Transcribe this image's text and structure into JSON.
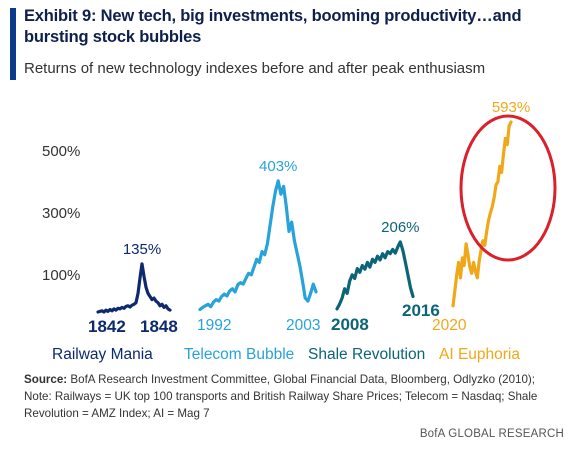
{
  "header": {
    "title": "Exhibit 9: New tech, big investments, booming productivity…and bursting stock bubbles",
    "subtitle": "Returns of new technology indexes before and after peak enthusiasm"
  },
  "chart_data": {
    "type": "line",
    "title": "Exhibit 9: New tech, big investments, booming productivity…and bursting stock bubbles",
    "subtitle": "Returns of new technology indexes before and after peak enthusiasm",
    "ylim": [
      0,
      600
    ],
    "yticks": [
      {
        "value": 100,
        "label": "100%"
      },
      {
        "value": 300,
        "label": "300%"
      },
      {
        "value": 500,
        "label": "500%"
      }
    ],
    "grid": false,
    "series": [
      {
        "name": "Railway Mania",
        "color": "#0d2a6e",
        "start_label": "1842",
        "end_label": "1848",
        "peak_label": "135%",
        "peak_value": 135,
        "values": [
          -20,
          -18,
          -16,
          -20,
          -14,
          -18,
          -12,
          -16,
          -10,
          -14,
          -8,
          -10,
          -5,
          -8,
          -2,
          0,
          -4,
          2,
          5,
          10,
          40,
          90,
          135,
          95,
          60,
          40,
          30,
          20,
          25,
          15,
          10,
          0,
          5,
          -5,
          0,
          -10,
          -14
        ]
      },
      {
        "name": "Telecom Bubble",
        "color": "#27a3d9",
        "start_label": "1992",
        "end_label": "2003",
        "peak_label": "403%",
        "peak_value": 403,
        "values": [
          -12,
          -5,
          0,
          5,
          -3,
          12,
          20,
          15,
          30,
          38,
          32,
          48,
          55,
          45,
          68,
          75,
          70,
          88,
          105,
          100,
          125,
          150,
          140,
          175,
          165,
          200,
          260,
          320,
          370,
          403,
          360,
          385,
          320,
          240,
          270,
          210,
          170,
          130,
          80,
          25,
          15,
          40,
          70,
          45
        ]
      },
      {
        "name": "Shale Revolution",
        "color": "#0b6478",
        "start_label": "2008",
        "end_label": "2016",
        "peak_label": "206%",
        "peak_value": 206,
        "values": [
          -10,
          5,
          25,
          55,
          40,
          80,
          100,
          88,
          120,
          108,
          130,
          118,
          140,
          125,
          150,
          140,
          160,
          148,
          168,
          155,
          175,
          168,
          182,
          170,
          190,
          206,
          178,
          140,
          100,
          58,
          30
        ]
      },
      {
        "name": "AI Euphoria",
        "color": "#f0a81a",
        "start_label": "2020",
        "end_label": "",
        "peak_label": "593%",
        "peak_value": 593,
        "values": [
          0,
          50,
          100,
          140,
          90,
          155,
          130,
          200,
          165,
          125,
          105,
          140,
          110,
          90,
          145,
          180,
          210,
          195,
          240,
          275,
          300,
          320,
          350,
          390,
          400,
          450,
          430,
          490,
          540,
          520,
          580,
          593
        ]
      }
    ]
  },
  "source_note": {
    "source_label": "Source:",
    "source_text": " BofA Research Investment Committee, Global Financial Data, Bloomberg, Odlyzko (2010);",
    "note_text": "Note: Railways = UK top 100 transports and British Railway Share Prices; Telecom = Nasdaq; Shale Revolution = AMZ Index; AI = Mag 7"
  },
  "brand": "BofA GLOBAL RESEARCH",
  "annotation_color": "#d9202b"
}
